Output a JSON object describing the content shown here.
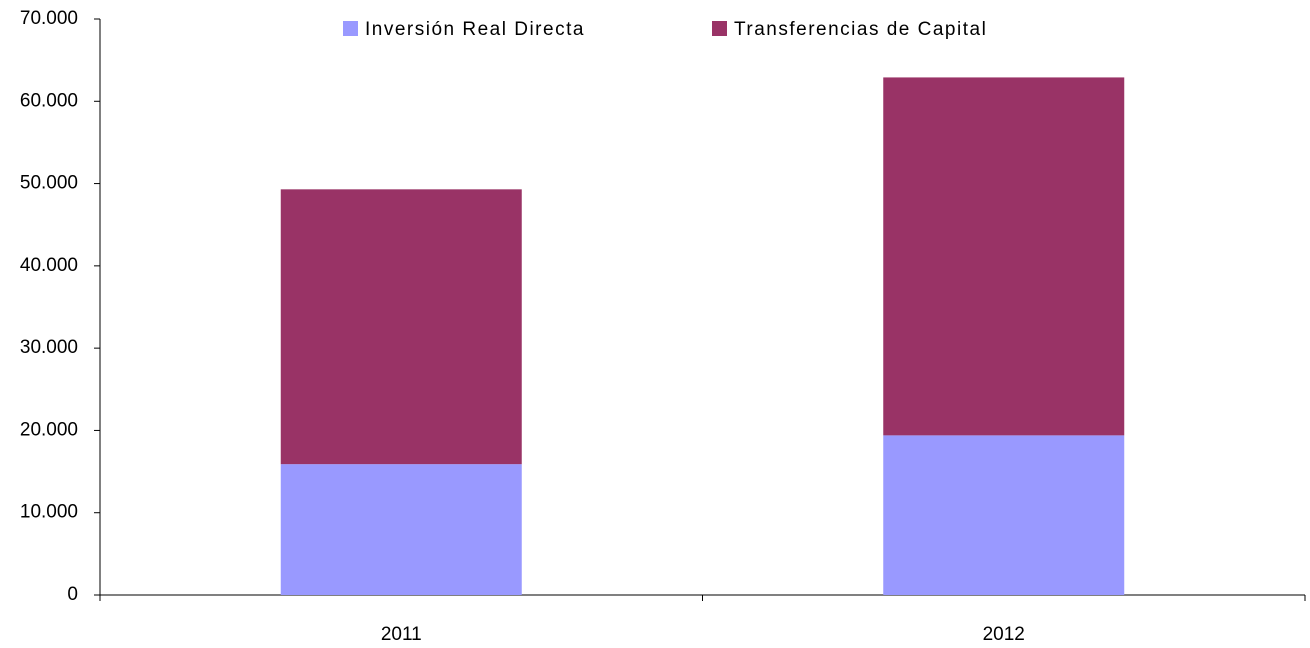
{
  "chart_data": {
    "type": "stacked_bar",
    "categories": [
      "2011",
      "2012"
    ],
    "series": [
      {
        "name": "Inversión Real Directa",
        "color": "#9999ff",
        "values": [
          15900,
          19400
        ]
      },
      {
        "name": "Transferencias de Capital",
        "color": "#993366",
        "values": [
          33400,
          43500
        ]
      }
    ],
    "ylim": [
      0,
      70000
    ],
    "yticks": [
      0,
      {
        "value": 10000,
        "label": "10.000"
      },
      {
        "value": 20000,
        "label": "20.000"
      },
      {
        "value": 30000,
        "label": "30.000"
      },
      {
        "value": 40000,
        "label": "40.000"
      },
      {
        "value": 50000,
        "label": "50.000"
      },
      {
        "value": 60000,
        "label": "60.000"
      },
      {
        "value": 70000,
        "label": "70.000"
      }
    ],
    "legend": "top",
    "grid": false
  }
}
